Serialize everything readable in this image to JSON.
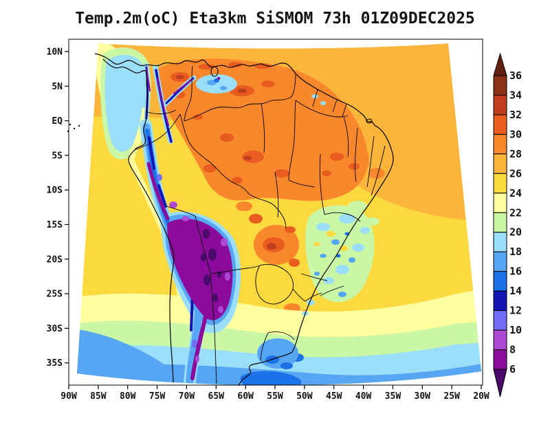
{
  "title": "Temp.2m(oC) Eta3km SiSMOM 73h 01Z09DEC2025",
  "axes": {
    "lat_labels": [
      "10N",
      "5N",
      "EQ",
      "5S",
      "10S",
      "15S",
      "20S",
      "25S",
      "30S",
      "35S"
    ],
    "lon_labels": [
      "90W",
      "85W",
      "80W",
      "75W",
      "70W",
      "65W",
      "60W",
      "55W",
      "50W",
      "45W",
      "40W",
      "35W",
      "30W",
      "25W",
      "20W"
    ]
  },
  "colorbar": {
    "boundary_labels_top_to_bottom": [
      "36",
      "34",
      "32",
      "30",
      "28",
      "26",
      "24",
      "22",
      "20",
      "18",
      "16",
      "14",
      "12",
      "10",
      "8",
      "6"
    ],
    "segment_color_keys_top_to_bottom": [
      "t34_36",
      "t32_34",
      "t30_32",
      "t28_30",
      "t26_28",
      "t24_26",
      "t22_24",
      "t20_22",
      "t18_20",
      "t16_18",
      "t14_16",
      "t12_14",
      "t10_12",
      "t8_10",
      "t6_8"
    ],
    "above_color_key": "t_above36",
    "below_color_key": "t_below6"
  },
  "palette": {
    "t_below6": "#4a0a69",
    "t6_8": "#8b0c9c",
    "t8_10": "#ad49d2",
    "t10_12": "#716cf4",
    "t12_14": "#1414b4",
    "t14_16": "#1a71e8",
    "t16_18": "#57a6f4",
    "t18_20": "#9adef9",
    "t20_22": "#c9f7a5",
    "t22_24": "#feff9f",
    "t24_26": "#fcd93f",
    "t26_28": "#fbb53b",
    "t28_30": "#f9882c",
    "t30_32": "#e85c20",
    "t32_34": "#c03d1d",
    "t34_36": "#8c3118",
    "t_above36": "#632112"
  },
  "chart_data": {
    "type": "heatmap",
    "title": "Temp.2m(oC) Eta3km SiSMOM 73h 01Z09DEC2025",
    "variable": "Temp.2m",
    "units": "oC",
    "model": "Eta3km",
    "system": "SiSMOM",
    "forecast_hour": "73h",
    "valid_time": "01Z09DEC2025",
    "x_tick_labels": [
      "90W",
      "85W",
      "80W",
      "75W",
      "70W",
      "65W",
      "60W",
      "55W",
      "50W",
      "45W",
      "40W",
      "35W",
      "30W",
      "25W",
      "20W"
    ],
    "y_tick_labels": [
      "10N",
      "5N",
      "EQ",
      "5S",
      "10S",
      "15S",
      "20S",
      "25S",
      "30S",
      "35S"
    ],
    "colorbar_levels": [
      6,
      8,
      10,
      12,
      14,
      16,
      18,
      20,
      22,
      24,
      26,
      28,
      30,
      32,
      34,
      36
    ],
    "colorbar_extend": "both",
    "legend_position": "right",
    "grid": false,
    "field_features": [
      {
        "region": "Andes cordillera / Altiplano (Peru-Bolivia-Chile)",
        "approx_temp_C": "below 6 to 12"
      },
      {
        "region": "Amazon basin, Venezuela, Guianas (land)",
        "approx_temp_C": "28 to 32"
      },
      {
        "region": "Tropical Atlantic north of equator",
        "approx_temp_C": "26 to 28"
      },
      {
        "region": "Pacific off Peru / central oceans",
        "approx_temp_C": "24 to 26"
      },
      {
        "region": "Pacific near Colombian coast",
        "approx_temp_C": "18 to 22"
      },
      {
        "region": "Southeast Brazil highlands (speckled)",
        "approx_temp_C": "16 to 24"
      },
      {
        "region": "Uruguay / Rio de la Plata",
        "approx_temp_C": "14 to 18"
      },
      {
        "region": "South Atlantic near 35S-38S",
        "approx_temp_C": "16 to 20"
      },
      {
        "region": "Paraguay / Chaco hot spots",
        "approx_temp_C": "30 to 34"
      }
    ]
  }
}
